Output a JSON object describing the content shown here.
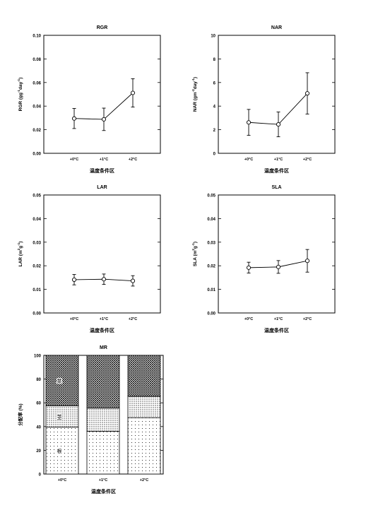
{
  "xlabel": "温度条件区",
  "categories": [
    "+0°C",
    "+1°C",
    "+2°C"
  ],
  "chart_data": [
    {
      "type": "line",
      "title": "RGR",
      "ylabel": "RGR (g g⁻¹ day⁻¹)",
      "ylabel_parts": [
        "RGR (gg",
        "-1",
        "day",
        "-1",
        ")"
      ],
      "xlabel": "温度条件区",
      "categories": [
        "+0°C",
        "+1°C",
        "+2°C"
      ],
      "values": [
        0.0295,
        0.0288,
        0.0512
      ],
      "errors": [
        0.0085,
        0.0095,
        0.012
      ],
      "ylim": [
        0,
        0.1
      ],
      "yticks": [
        "0.00",
        "0.02",
        "0.04",
        "0.06",
        "0.08",
        "0.10"
      ]
    },
    {
      "type": "line",
      "title": "NAR",
      "ylabel": "NAR (g m⁻² day⁻¹)",
      "ylabel_parts": [
        "NAR (gm",
        "-2",
        "day",
        "-1",
        ")"
      ],
      "xlabel": "温度条件区",
      "categories": [
        "+0°C",
        "+1°C",
        "+2°C"
      ],
      "values": [
        2.62,
        2.45,
        5.08
      ],
      "errors": [
        1.1,
        1.05,
        1.75
      ],
      "ylim": [
        0,
        10
      ],
      "yticks": [
        "0",
        "2",
        "4",
        "6",
        "8",
        "10"
      ]
    },
    {
      "type": "line",
      "title": "LAR",
      "ylabel": "LAR (m² g⁻¹)",
      "ylabel_parts": [
        "LAR (m",
        "2",
        "g",
        "-1",
        ")"
      ],
      "xlabel": "温度条件区",
      "categories": [
        "+0°C",
        "+1°C",
        "+2°C"
      ],
      "values": [
        0.0141,
        0.0143,
        0.0136
      ],
      "errors": [
        0.0022,
        0.0022,
        0.0022
      ],
      "ylim": [
        0,
        0.05
      ],
      "yticks": [
        "0.00",
        "0.01",
        "0.02",
        "0.03",
        "0.04",
        "0.05"
      ]
    },
    {
      "type": "line",
      "title": "SLA",
      "ylabel": "SLA (m² g⁻¹)",
      "ylabel_parts": [
        "SLA (m",
        "2",
        "g",
        "-1",
        ")"
      ],
      "xlabel": "温度条件区",
      "categories": [
        "+0°C",
        "+1°C",
        "+2°C"
      ],
      "values": [
        0.0192,
        0.0195,
        0.0221
      ],
      "errors": [
        0.0023,
        0.0027,
        0.0048
      ],
      "ylim": [
        0,
        0.05
      ],
      "yticks": [
        "0.00",
        "0.01",
        "0.02",
        "0.03",
        "0.04",
        "0.05"
      ]
    },
    {
      "type": "bar",
      "stacked": true,
      "title": "MR",
      "ylabel": "分配率 (%)",
      "xlabel": "温度条件区",
      "categories": [
        "+0°C",
        "+1°C",
        "+2°C"
      ],
      "series": [
        {
          "name": "根",
          "values": [
            39.5,
            36,
            47.5
          ],
          "pattern": "sparse-dots"
        },
        {
          "name": "茎",
          "values": [
            18,
            19.5,
            18
          ],
          "pattern": "dense-dots"
        },
        {
          "name": "葉",
          "values": [
            42.5,
            44.5,
            34.5
          ],
          "pattern": "crosshatch"
        }
      ],
      "ylim": [
        0,
        100
      ],
      "yticks": [
        "0",
        "20",
        "40",
        "60",
        "80",
        "100"
      ]
    }
  ]
}
